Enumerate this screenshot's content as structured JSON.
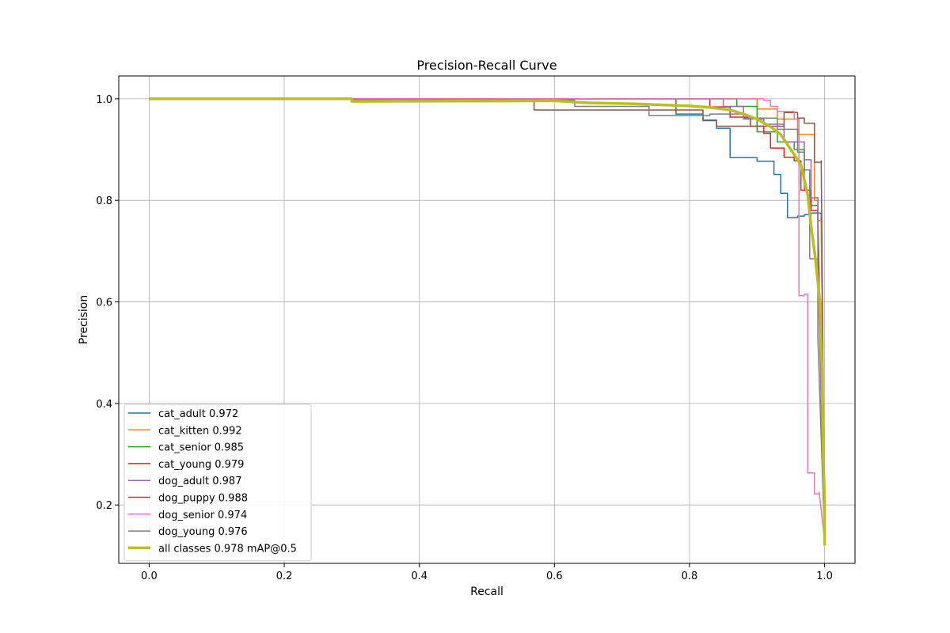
{
  "chart_data": {
    "type": "line",
    "title": "Precision-Recall Curve",
    "xlabel": "Recall",
    "ylabel": "Precision",
    "xlim": [
      -0.045,
      1.045
    ],
    "ylim": [
      0.085,
      1.045
    ],
    "xticks": [
      "0.0",
      "0.2",
      "0.4",
      "0.6",
      "0.8",
      "1.0"
    ],
    "yticks": [
      "0.2",
      "0.4",
      "0.6",
      "0.8",
      "1.0"
    ],
    "grid": true,
    "legend_position": "lower-left",
    "series": [
      {
        "name": "cat_adult 0.972",
        "color": "#1f77b4",
        "x": [
          0.0,
          0.78,
          0.78,
          0.82,
          0.82,
          0.84,
          0.84,
          0.86,
          0.86,
          0.9,
          0.9,
          0.925,
          0.925,
          0.935,
          0.935,
          0.945,
          0.945,
          0.96,
          0.96,
          0.97,
          0.97,
          0.98,
          0.98,
          0.995,
          0.995,
          1.0
        ],
        "y": [
          1.0,
          1.0,
          0.97,
          0.97,
          0.957,
          0.957,
          0.942,
          0.942,
          0.884,
          0.884,
          0.877,
          0.877,
          0.851,
          0.851,
          0.814,
          0.814,
          0.766,
          0.766,
          0.769,
          0.769,
          0.772,
          0.772,
          0.775,
          0.775,
          0.768,
          0.12
        ]
      },
      {
        "name": "cat_kitten 0.992",
        "color": "#ff7f0e",
        "x": [
          0.0,
          0.9,
          0.9,
          0.93,
          0.93,
          0.96,
          0.96,
          0.985,
          0.985,
          0.99,
          0.99,
          0.995,
          0.995,
          1.0
        ],
        "y": [
          1.0,
          1.0,
          0.98,
          0.98,
          0.96,
          0.96,
          0.93,
          0.93,
          0.8,
          0.8,
          0.76,
          0.76,
          0.75,
          0.13
        ]
      },
      {
        "name": "cat_senior 0.985",
        "color": "#2ca02c",
        "x": [
          0.0,
          0.87,
          0.87,
          0.9,
          0.9,
          0.93,
          0.93,
          0.955,
          0.955,
          0.97,
          0.97,
          0.98,
          0.98,
          0.99,
          0.99,
          1.0
        ],
        "y": [
          1.0,
          1.0,
          0.985,
          0.985,
          0.935,
          0.935,
          0.915,
          0.915,
          0.9,
          0.9,
          0.82,
          0.82,
          0.79,
          0.79,
          0.77,
          0.12
        ]
      },
      {
        "name": "cat_young 0.979",
        "color": "#d62728",
        "x": [
          0.0,
          0.83,
          0.83,
          0.86,
          0.86,
          0.89,
          0.89,
          0.91,
          0.91,
          0.92,
          0.92,
          0.94,
          0.94,
          0.955,
          0.955,
          0.965,
          0.965,
          0.98,
          0.98,
          0.99,
          0.99,
          1.0
        ],
        "y": [
          1.0,
          1.0,
          0.984,
          0.984,
          0.964,
          0.964,
          0.946,
          0.946,
          0.932,
          0.932,
          0.903,
          0.903,
          0.885,
          0.885,
          0.878,
          0.878,
          0.82,
          0.82,
          0.78,
          0.78,
          0.73,
          0.13
        ]
      },
      {
        "name": "dog_adult 0.987",
        "color": "#9467bd",
        "x": [
          0.0,
          0.85,
          0.85,
          0.88,
          0.88,
          0.91,
          0.91,
          0.94,
          0.94,
          0.97,
          0.97,
          0.98,
          0.98,
          0.99,
          0.99,
          1.0
        ],
        "y": [
          1.0,
          1.0,
          0.985,
          0.985,
          0.96,
          0.96,
          0.95,
          0.95,
          0.915,
          0.915,
          0.88,
          0.88,
          0.805,
          0.805,
          0.68,
          0.12
        ]
      },
      {
        "name": "dog_puppy 0.988",
        "color": "#8c564b",
        "x": [
          0.0,
          0.57,
          0.57,
          0.82,
          0.82,
          0.84,
          0.84,
          0.94,
          0.94,
          0.96,
          0.96,
          0.97,
          0.97,
          0.985,
          0.985,
          0.995,
          0.995,
          1.0
        ],
        "y": [
          1.0,
          1.0,
          0.978,
          0.978,
          0.958,
          0.958,
          0.946,
          0.946,
          0.973,
          0.973,
          0.962,
          0.962,
          0.952,
          0.952,
          0.875,
          0.875,
          0.878,
          0.13
        ]
      },
      {
        "name": "dog_senior 0.974",
        "color": "#e377c2",
        "x": [
          0.0,
          0.91,
          0.91,
          0.92,
          0.92,
          0.93,
          0.93,
          0.955,
          0.955,
          0.962,
          0.962,
          0.97,
          0.97,
          0.975,
          0.975,
          0.985,
          0.985,
          0.992,
          0.992,
          1.0
        ],
        "y": [
          1.0,
          1.0,
          0.997,
          0.997,
          0.985,
          0.985,
          0.975,
          0.975,
          0.96,
          0.96,
          0.612,
          0.612,
          0.615,
          0.615,
          0.263,
          0.263,
          0.222,
          0.222,
          0.225,
          0.13
        ]
      },
      {
        "name": "dog_young 0.976",
        "color": "#7f7f7f",
        "x": [
          0.0,
          0.3,
          0.3,
          0.63,
          0.63,
          0.74,
          0.74,
          0.83,
          0.83,
          0.88,
          0.88,
          0.93,
          0.93,
          0.96,
          0.96,
          0.97,
          0.97,
          0.978,
          0.978,
          0.99,
          0.99,
          1.0
        ],
        "y": [
          1.0,
          1.0,
          0.998,
          0.998,
          0.985,
          0.985,
          0.967,
          0.967,
          0.97,
          0.97,
          0.962,
          0.962,
          0.94,
          0.94,
          0.895,
          0.895,
          0.86,
          0.86,
          0.685,
          0.685,
          0.53,
          0.13
        ]
      },
      {
        "name": "all classes 0.978 mAP@0.5",
        "color": "#bcbd22",
        "x": [
          0.0,
          0.3,
          0.3,
          0.6,
          0.65,
          0.72,
          0.76,
          0.8,
          0.83,
          0.86,
          0.88,
          0.9,
          0.92,
          0.935,
          0.945,
          0.955,
          0.965,
          0.975,
          0.98,
          0.985,
          0.99,
          0.993,
          0.996,
          0.998,
          1.0,
          1.0
        ],
        "y": [
          1.0,
          1.0,
          0.995,
          0.996,
          0.992,
          0.99,
          0.988,
          0.986,
          0.983,
          0.978,
          0.97,
          0.96,
          0.945,
          0.93,
          0.91,
          0.89,
          0.87,
          0.81,
          0.75,
          0.7,
          0.64,
          0.6,
          0.48,
          0.3,
          0.21,
          0.12
        ]
      }
    ]
  }
}
